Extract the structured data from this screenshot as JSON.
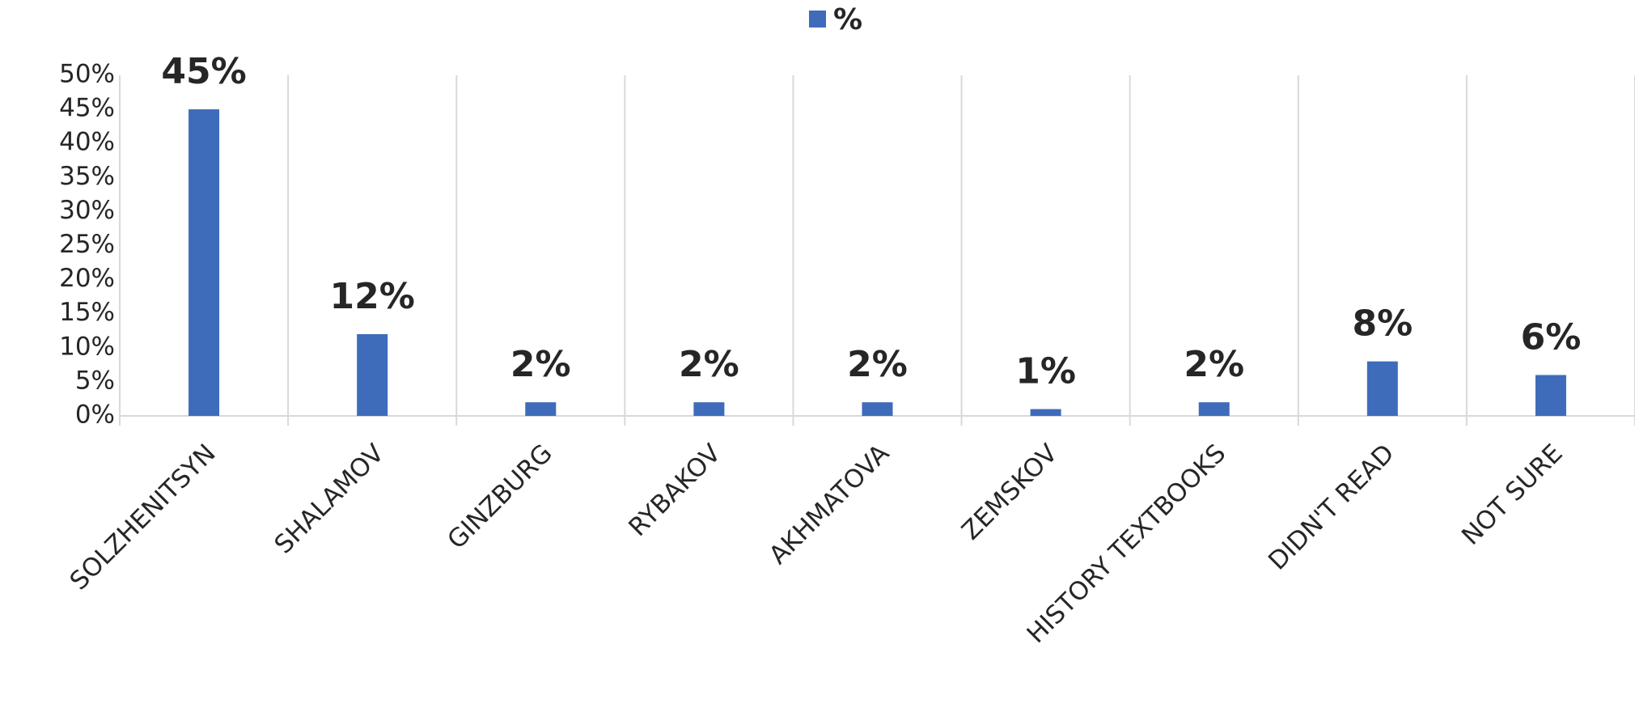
{
  "chart_data": {
    "type": "bar",
    "categories": [
      "SOLZHENITSYN",
      "SHALAMOV",
      "GINZBURG",
      "RYBAKOV",
      "AKHMATOVA",
      "ZEMSKOV",
      "HISTORY TEXTBOOKS",
      "DIDN'T READ",
      "NOT SURE"
    ],
    "series": [
      {
        "name": "%",
        "color": "#3e6cbb",
        "values": [
          45,
          12,
          2,
          2,
          2,
          1,
          2,
          8,
          6
        ],
        "value_labels": [
          "45%",
          "12%",
          "2%",
          "2%",
          "2%",
          "1%",
          "2%",
          "8%",
          "6%"
        ]
      }
    ],
    "ylim": [
      0,
      50
    ],
    "yticks": [
      {
        "value": 0,
        "label": "0%"
      },
      {
        "value": 5,
        "label": "5%"
      },
      {
        "value": 10,
        "label": "10%"
      },
      {
        "value": 15,
        "label": "15%"
      },
      {
        "value": 20,
        "label": "20%"
      },
      {
        "value": 25,
        "label": "25%"
      },
      {
        "value": 30,
        "label": "30%"
      },
      {
        "value": 35,
        "label": "35%"
      },
      {
        "value": 40,
        "label": "40%"
      },
      {
        "value": 45,
        "label": "45%"
      },
      {
        "value": 50,
        "label": "50%"
      }
    ],
    "legend": "top"
  }
}
